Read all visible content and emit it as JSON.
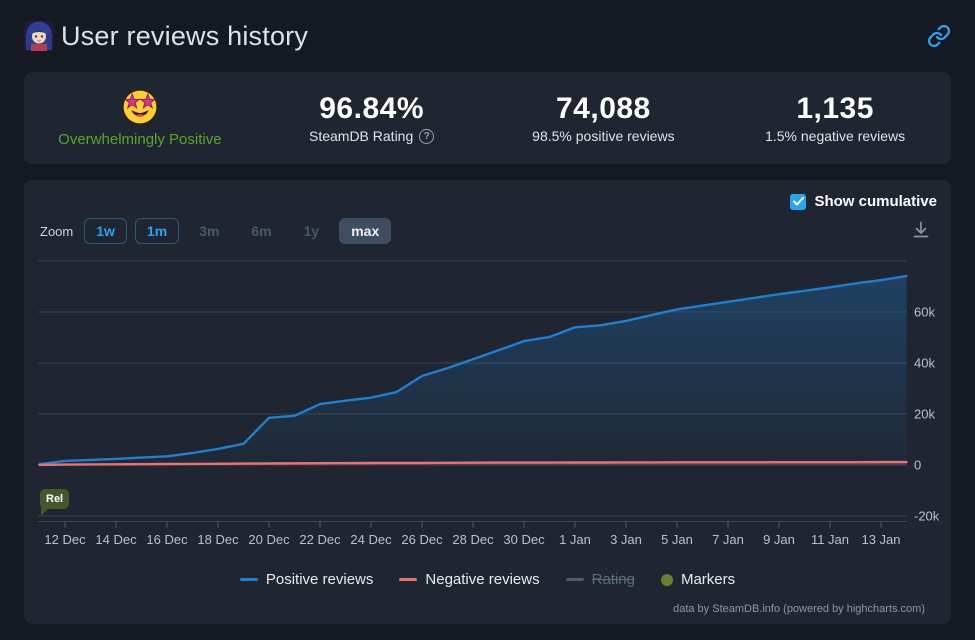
{
  "header": {
    "title": "User reviews history"
  },
  "stats": {
    "summary_label": "Overwhelmingly Positive",
    "summary_color": "#58a62b",
    "rating_value": "96.84%",
    "rating_label": "SteamDB Rating",
    "rating_help_glyph": "?",
    "positive_value": "74,088",
    "positive_label": "98.5% positive reviews",
    "negative_value": "1,135",
    "negative_label": "1.5% negative reviews"
  },
  "controls": {
    "cumulative_label": "Show cumulative",
    "cumulative_checked": true,
    "zoom_label": "Zoom",
    "zoom_buttons": [
      {
        "label": "1w",
        "state": "active"
      },
      {
        "label": "1m",
        "state": "active"
      },
      {
        "label": "3m",
        "state": "disabled"
      },
      {
        "label": "6m",
        "state": "disabled"
      },
      {
        "label": "1y",
        "state": "disabled"
      },
      {
        "label": "max",
        "state": "selected"
      }
    ]
  },
  "chart_data": {
    "type": "area",
    "title": "",
    "x": [
      "11 Dec",
      "12 Dec",
      "13 Dec",
      "14 Dec",
      "15 Dec",
      "16 Dec",
      "17 Dec",
      "18 Dec",
      "19 Dec",
      "20 Dec",
      "21 Dec",
      "22 Dec",
      "23 Dec",
      "24 Dec",
      "25 Dec",
      "26 Dec",
      "27 Dec",
      "28 Dec",
      "29 Dec",
      "30 Dec",
      "31 Dec",
      "1 Jan",
      "2 Jan",
      "3 Jan",
      "4 Jan",
      "5 Jan",
      "6 Jan",
      "7 Jan",
      "8 Jan",
      "9 Jan",
      "10 Jan",
      "11 Jan",
      "12 Jan",
      "13 Jan",
      "14 Jan"
    ],
    "x_tick_every": 2,
    "x_tick_start_index": 1,
    "series": [
      {
        "name": "Positive reviews",
        "color": "#1f7fd0",
        "values": [
          300,
          1600,
          2000,
          2400,
          2900,
          3400,
          4700,
          6300,
          8300,
          18500,
          19300,
          23900,
          25200,
          26400,
          28600,
          34900,
          38000,
          41500,
          45000,
          48600,
          50200,
          54000,
          54800,
          56500,
          58800,
          61000,
          62500,
          64000,
          65500,
          67000,
          68300,
          69700,
          71200,
          72500,
          74088
        ]
      },
      {
        "name": "Negative reviews",
        "color": "#ee7171",
        "values": [
          50,
          150,
          220,
          280,
          330,
          380,
          430,
          480,
          560,
          640,
          680,
          720,
          750,
          780,
          810,
          840,
          870,
          900,
          925,
          945,
          960,
          980,
          995,
          1010,
          1025,
          1040,
          1055,
          1065,
          1075,
          1085,
          1095,
          1105,
          1115,
          1125,
          1135
        ]
      }
    ],
    "y_ticks": [
      {
        "value": -20000,
        "label": "-20k"
      },
      {
        "value": 0,
        "label": "0"
      },
      {
        "value": 20000,
        "label": "20k"
      },
      {
        "value": 40000,
        "label": "40k"
      },
      {
        "value": 60000,
        "label": "60k"
      },
      {
        "value": 80000,
        "label": ""
      }
    ],
    "ylim": [
      -24000,
      82000
    ],
    "grid": true,
    "legend_position": "bottom",
    "annotation": {
      "label": "Rel",
      "x_index": 0
    },
    "legend": [
      {
        "label": "Positive reviews",
        "color": "#1f7fd0",
        "shape": "line",
        "enabled": true
      },
      {
        "label": "Negative reviews",
        "color": "#ee7171",
        "shape": "line",
        "enabled": true
      },
      {
        "label": "Rating",
        "color": "#4e5c6e",
        "shape": "line",
        "enabled": false
      },
      {
        "label": "Markers",
        "color": "#6f7e2e",
        "shape": "circle",
        "enabled": true
      }
    ]
  },
  "credits": "data by SteamDB.info (powered by highcharts.com)"
}
